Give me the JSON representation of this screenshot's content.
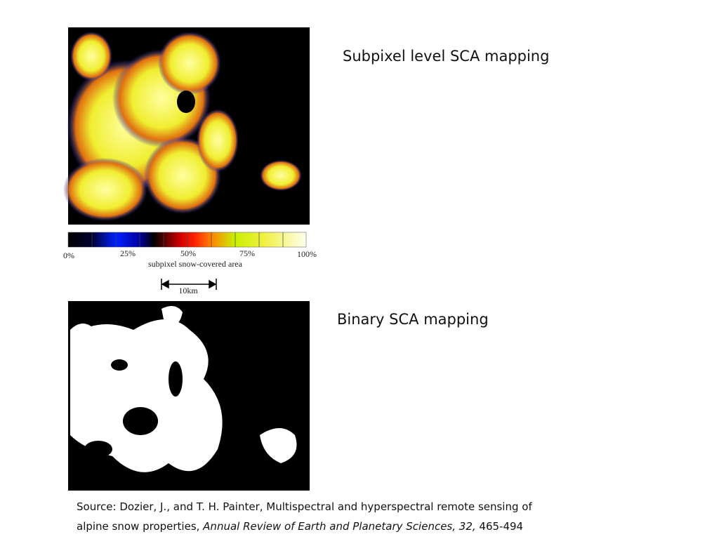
{
  "slide": {
    "top_caption": "Subpixel level SCA mapping",
    "bottom_caption": "Binary SCA mapping",
    "colorbar": {
      "tick_labels": [
        "0%",
        "25%",
        "50%",
        "75%",
        "100%"
      ],
      "label": "subpixel snow-covered area"
    },
    "scale_bar": "10km",
    "source": {
      "line1": "Source: Dozier, J., and T. H. Painter, Multispectral and hyperspectral remote sensing of",
      "line2_start": "alpine snow properties, ",
      "journal": "Annual Review of Earth and Planetary Sciences, 32,",
      "pages": " 465-494"
    }
  }
}
